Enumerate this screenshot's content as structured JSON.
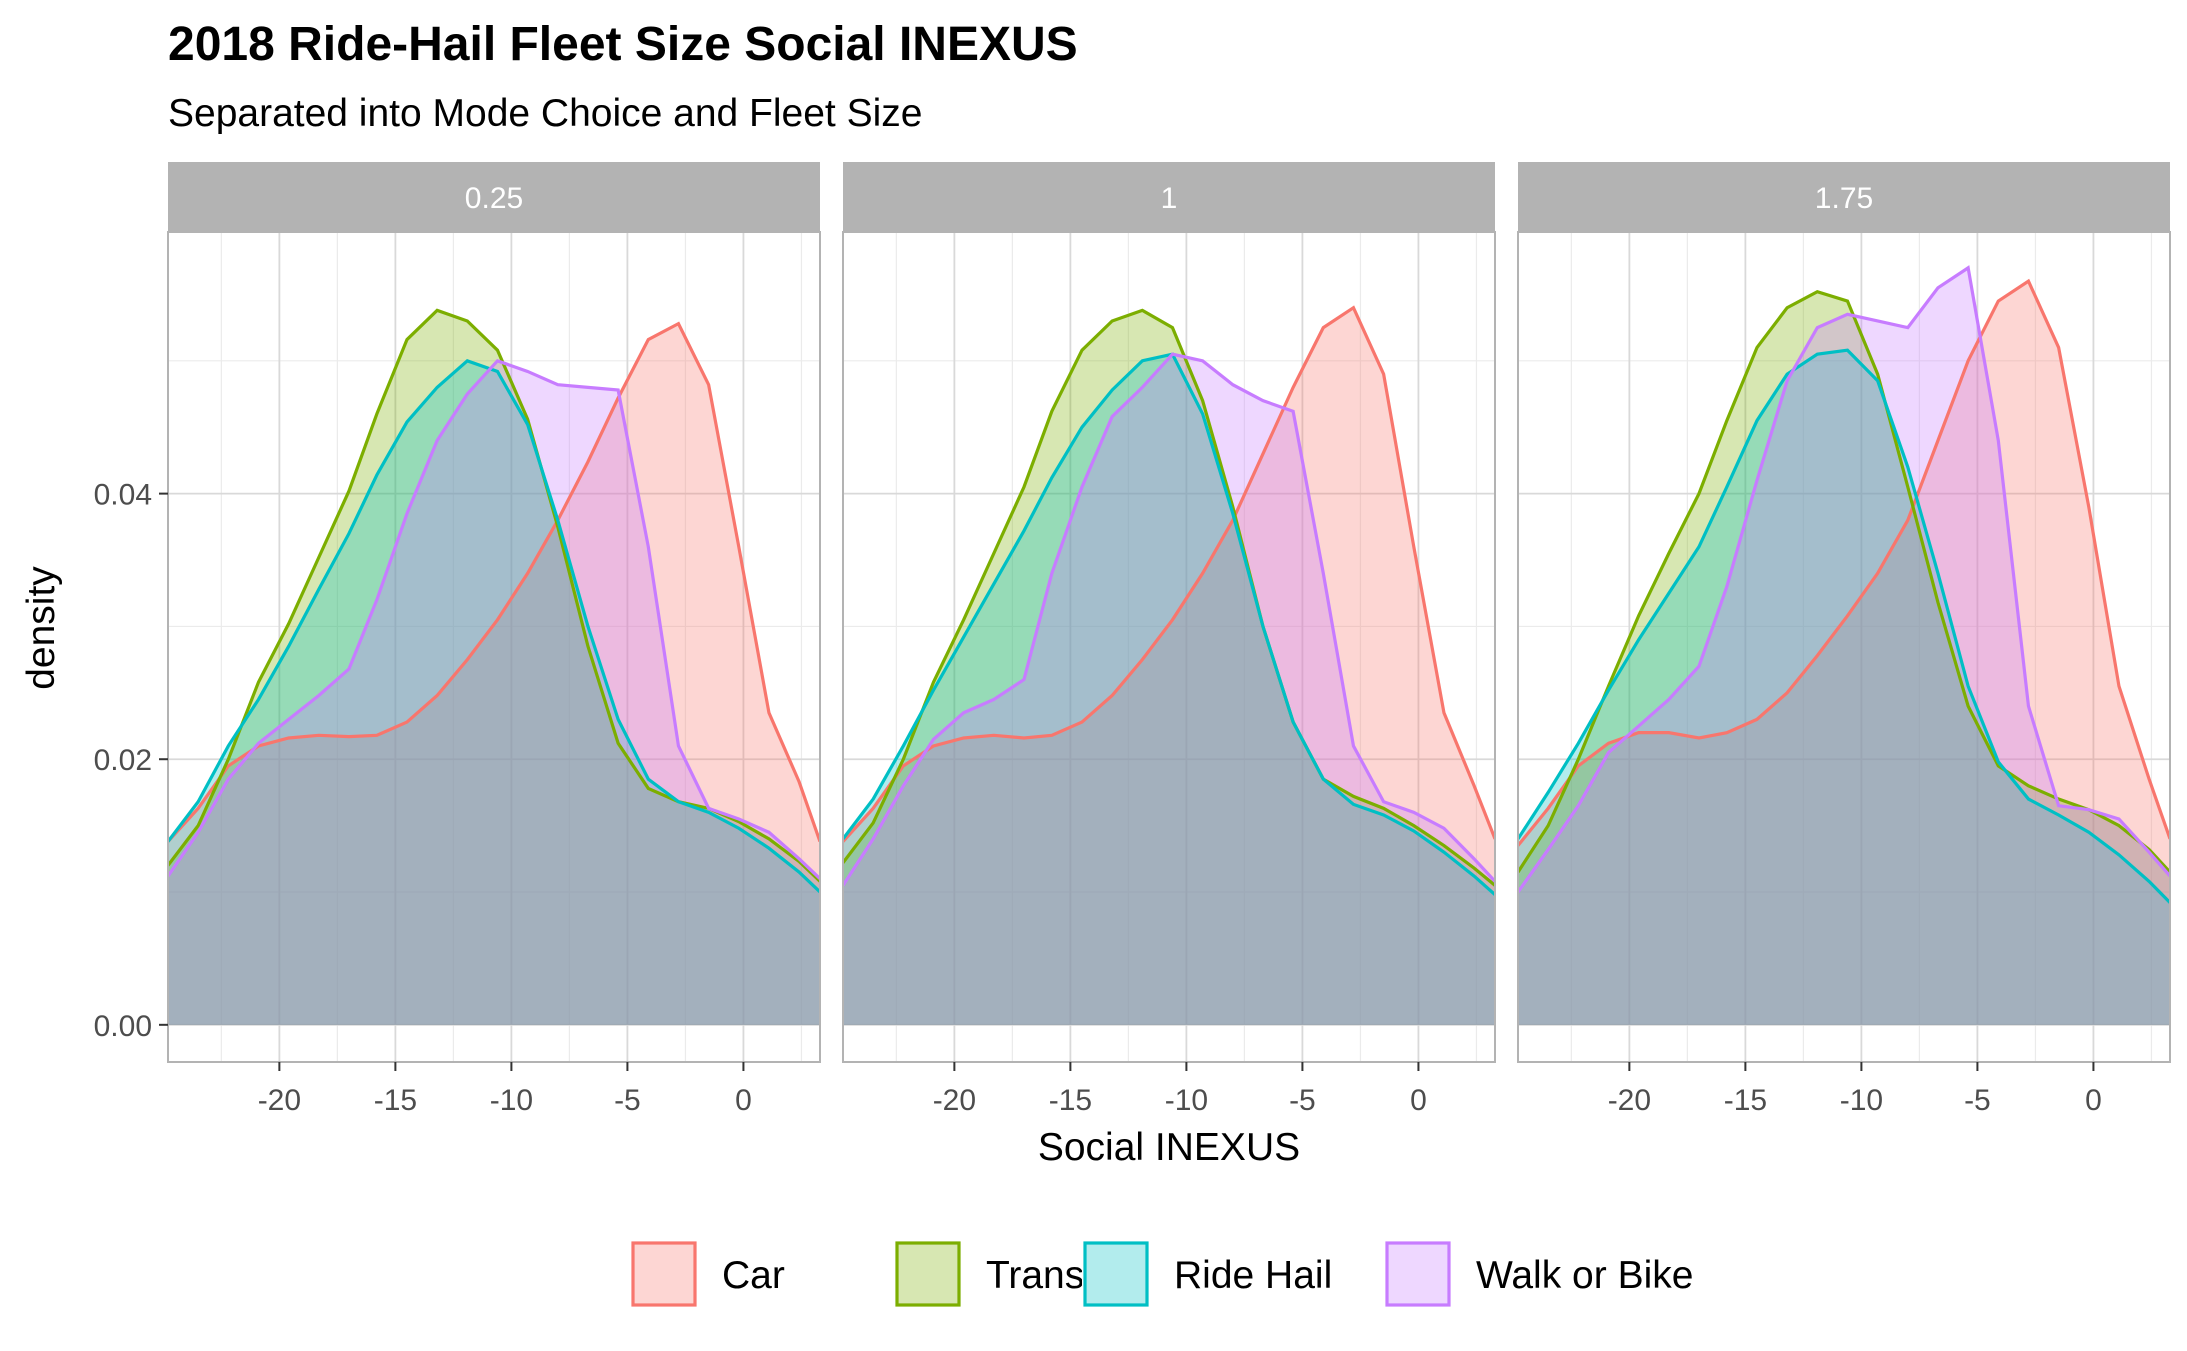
{
  "chart_data": {
    "type": "area",
    "title": "2018 Ride-Hail Fleet Size Social INEXUS",
    "subtitle": "Separated into Mode Choice and Fleet Size",
    "xlabel": "Social INEXUS",
    "ylabel": "density",
    "xlim": [
      -24.8,
      3.3
    ],
    "ylim": [
      -0.0028,
      0.0597
    ],
    "x_ticks": [
      -20,
      -15,
      -10,
      -5,
      0
    ],
    "x_tick_labels": [
      "-20",
      "-15",
      "-10",
      "-5",
      "0"
    ],
    "y_ticks": [
      0.0,
      0.02,
      0.04
    ],
    "y_tick_labels": [
      "0.00",
      "0.02",
      "0.04"
    ],
    "grid": true,
    "legend_position": "bottom",
    "legend": [
      {
        "name": "Car",
        "color": "#F8766D"
      },
      {
        "name": "Transit",
        "color": "#7CAE00"
      },
      {
        "name": "Ride Hail",
        "color": "#00BFC4"
      },
      {
        "name": "Walk or Bike",
        "color": "#C77CFF"
      }
    ],
    "panels": [
      {
        "label": "0.25",
        "series": [
          {
            "name": "Car",
            "color": "#F8766D",
            "x": [
              -24.8,
              -23.5,
              -22.2,
              -20.9,
              -19.6,
              -18.3,
              -17.0,
              -15.8,
              -14.5,
              -13.2,
              -11.9,
              -10.6,
              -9.3,
              -8.0,
              -6.7,
              -5.4,
              -4.1,
              -2.8,
              -1.5,
              -0.2,
              1.1,
              2.4,
              3.3
            ],
            "y": [
              0.0138,
              0.0163,
              0.0195,
              0.021,
              0.0216,
              0.0218,
              0.0217,
              0.0218,
              0.0228,
              0.0248,
              0.0275,
              0.0305,
              0.034,
              0.038,
              0.0424,
              0.0472,
              0.0516,
              0.0528,
              0.0482,
              0.036,
              0.0235,
              0.0183,
              0.0138
            ]
          },
          {
            "name": "Transit",
            "color": "#7CAE00",
            "x": [
              -24.8,
              -23.5,
              -22.2,
              -20.9,
              -19.6,
              -18.3,
              -17.0,
              -15.8,
              -14.5,
              -13.2,
              -11.9,
              -10.6,
              -9.3,
              -8.0,
              -6.7,
              -5.4,
              -4.1,
              -2.8,
              -1.5,
              -0.2,
              1.1,
              2.4,
              3.3
            ],
            "y": [
              0.012,
              0.015,
              0.02,
              0.0258,
              0.0302,
              0.0352,
              0.0402,
              0.046,
              0.0516,
              0.0538,
              0.053,
              0.0508,
              0.0456,
              0.0375,
              0.0285,
              0.0212,
              0.0178,
              0.0168,
              0.0163,
              0.0153,
              0.014,
              0.0123,
              0.0108
            ]
          },
          {
            "name": "Ride Hail",
            "color": "#00BFC4",
            "x": [
              -24.8,
              -23.5,
              -22.2,
              -20.9,
              -19.6,
              -18.3,
              -17.0,
              -15.8,
              -14.5,
              -13.2,
              -11.9,
              -10.6,
              -9.3,
              -8.0,
              -6.7,
              -5.4,
              -4.1,
              -2.8,
              -1.5,
              -0.2,
              1.1,
              2.4,
              3.3
            ],
            "y": [
              0.0138,
              0.0168,
              0.021,
              0.0245,
              0.0285,
              0.0328,
              0.037,
              0.0414,
              0.0454,
              0.048,
              0.05,
              0.0492,
              0.0452,
              0.038,
              0.03,
              0.023,
              0.0185,
              0.0168,
              0.016,
              0.0148,
              0.0133,
              0.0115,
              0.01
            ]
          },
          {
            "name": "Walk or Bike",
            "color": "#C77CFF",
            "x": [
              -24.8,
              -23.5,
              -22.2,
              -20.9,
              -19.6,
              -18.3,
              -17.0,
              -15.8,
              -14.5,
              -13.2,
              -11.9,
              -10.6,
              -9.3,
              -8.0,
              -6.7,
              -5.4,
              -4.1,
              -2.8,
              -1.5,
              -0.2,
              1.1,
              2.4,
              3.3
            ],
            "y": [
              0.0112,
              0.0145,
              0.0185,
              0.0212,
              0.023,
              0.0248,
              0.0268,
              0.032,
              0.0385,
              0.044,
              0.0475,
              0.05,
              0.0492,
              0.0482,
              0.048,
              0.0478,
              0.036,
              0.021,
              0.0163,
              0.0155,
              0.0145,
              0.0125,
              0.011
            ]
          }
        ]
      },
      {
        "label": "1",
        "series": [
          {
            "name": "Car",
            "color": "#F8766D",
            "x": [
              -24.8,
              -23.5,
              -22.2,
              -20.9,
              -19.6,
              -18.3,
              -17.0,
              -15.8,
              -14.5,
              -13.2,
              -11.9,
              -10.6,
              -9.3,
              -8.0,
              -6.7,
              -5.4,
              -4.1,
              -2.8,
              -1.5,
              -0.2,
              1.1,
              2.4,
              3.3
            ],
            "y": [
              0.0138,
              0.0163,
              0.0195,
              0.021,
              0.0216,
              0.0218,
              0.0216,
              0.0218,
              0.0228,
              0.0248,
              0.0275,
              0.0305,
              0.034,
              0.038,
              0.043,
              0.048,
              0.0525,
              0.054,
              0.049,
              0.036,
              0.0235,
              0.018,
              0.014
            ]
          },
          {
            "name": "Transit",
            "color": "#7CAE00",
            "x": [
              -24.8,
              -23.5,
              -22.2,
              -20.9,
              -19.6,
              -18.3,
              -17.0,
              -15.8,
              -14.5,
              -13.2,
              -11.9,
              -10.6,
              -9.3,
              -8.0,
              -6.7,
              -5.4,
              -4.1,
              -2.8,
              -1.5,
              -0.2,
              1.1,
              2.4,
              3.3
            ],
            "y": [
              0.0122,
              0.0152,
              0.02,
              0.0258,
              0.0305,
              0.0355,
              0.0405,
              0.0462,
              0.0508,
              0.053,
              0.0538,
              0.0525,
              0.047,
              0.039,
              0.03,
              0.0228,
              0.0185,
              0.0172,
              0.0163,
              0.015,
              0.0135,
              0.0118,
              0.0105
            ]
          },
          {
            "name": "Ride Hail",
            "color": "#00BFC4",
            "x": [
              -24.8,
              -23.5,
              -22.2,
              -20.9,
              -19.6,
              -18.3,
              -17.0,
              -15.8,
              -14.5,
              -13.2,
              -11.9,
              -10.6,
              -9.3,
              -8.0,
              -6.7,
              -5.4,
              -4.1,
              -2.8,
              -1.5,
              -0.2,
              1.1,
              2.4,
              3.3
            ],
            "y": [
              0.014,
              0.017,
              0.021,
              0.0252,
              0.0292,
              0.0332,
              0.0372,
              0.0412,
              0.045,
              0.0478,
              0.05,
              0.0505,
              0.046,
              0.0385,
              0.03,
              0.0228,
              0.0185,
              0.0166,
              0.0158,
              0.0146,
              0.013,
              0.0112,
              0.0098
            ]
          },
          {
            "name": "Walk or Bike",
            "color": "#C77CFF",
            "x": [
              -24.8,
              -23.5,
              -22.2,
              -20.9,
              -19.6,
              -18.3,
              -17.0,
              -15.8,
              -14.5,
              -13.2,
              -11.9,
              -10.6,
              -9.3,
              -8.0,
              -6.7,
              -5.4,
              -4.1,
              -2.8,
              -1.5,
              -0.2,
              1.1,
              2.4,
              3.3
            ],
            "y": [
              0.0105,
              0.014,
              0.018,
              0.0215,
              0.0235,
              0.0245,
              0.026,
              0.034,
              0.0405,
              0.0458,
              0.048,
              0.0505,
              0.05,
              0.0482,
              0.047,
              0.0462,
              0.034,
              0.021,
              0.0168,
              0.016,
              0.0148,
              0.0125,
              0.0108
            ]
          }
        ]
      },
      {
        "label": "1.75",
        "series": [
          {
            "name": "Car",
            "color": "#F8766D",
            "x": [
              -24.8,
              -23.5,
              -22.2,
              -20.9,
              -19.6,
              -18.3,
              -17.0,
              -15.8,
              -14.5,
              -13.2,
              -11.9,
              -10.6,
              -9.3,
              -8.0,
              -6.7,
              -5.4,
              -4.1,
              -2.8,
              -1.5,
              -0.2,
              1.1,
              2.4,
              3.3
            ],
            "y": [
              0.0135,
              0.0163,
              0.0195,
              0.0212,
              0.022,
              0.022,
              0.0216,
              0.022,
              0.023,
              0.025,
              0.0278,
              0.0308,
              0.034,
              0.038,
              0.044,
              0.05,
              0.0545,
              0.056,
              0.051,
              0.039,
              0.0255,
              0.0185,
              0.014
            ]
          },
          {
            "name": "Transit",
            "color": "#7CAE00",
            "x": [
              -24.8,
              -23.5,
              -22.2,
              -20.9,
              -19.6,
              -18.3,
              -17.0,
              -15.8,
              -14.5,
              -13.2,
              -11.9,
              -10.6,
              -9.3,
              -8.0,
              -6.7,
              -5.4,
              -4.1,
              -2.8,
              -1.5,
              -0.2,
              1.1,
              2.4,
              3.3
            ],
            "y": [
              0.0115,
              0.015,
              0.02,
              0.0255,
              0.0308,
              0.0355,
              0.04,
              0.0455,
              0.051,
              0.054,
              0.0552,
              0.0545,
              0.049,
              0.0405,
              0.0318,
              0.024,
              0.0195,
              0.018,
              0.017,
              0.0162,
              0.015,
              0.0132,
              0.0115
            ]
          },
          {
            "name": "Ride Hail",
            "color": "#00BFC4",
            "x": [
              -24.8,
              -23.5,
              -22.2,
              -20.9,
              -19.6,
              -18.3,
              -17.0,
              -15.8,
              -14.5,
              -13.2,
              -11.9,
              -10.6,
              -9.3,
              -8.0,
              -6.7,
              -5.4,
              -4.1,
              -2.8,
              -1.5,
              -0.2,
              1.1,
              2.4,
              3.3
            ],
            "y": [
              0.014,
              0.0175,
              0.0212,
              0.0252,
              0.029,
              0.0325,
              0.036,
              0.0405,
              0.0455,
              0.049,
              0.0505,
              0.0508,
              0.0485,
              0.042,
              0.034,
              0.0255,
              0.0198,
              0.017,
              0.0158,
              0.0145,
              0.0128,
              0.0108,
              0.0092
            ]
          },
          {
            "name": "Walk or Bike",
            "color": "#C77CFF",
            "x": [
              -24.8,
              -23.5,
              -22.2,
              -20.9,
              -19.6,
              -18.3,
              -17.0,
              -15.8,
              -14.5,
              -13.2,
              -11.9,
              -10.6,
              -9.3,
              -8.0,
              -6.7,
              -5.4,
              -4.1,
              -2.8,
              -1.5,
              -0.2,
              1.1,
              2.4,
              3.3
            ],
            "y": [
              0.01,
              0.0132,
              0.0165,
              0.0205,
              0.0225,
              0.0245,
              0.027,
              0.033,
              0.041,
              0.0485,
              0.0525,
              0.0535,
              0.053,
              0.0525,
              0.0555,
              0.057,
              0.044,
              0.024,
              0.0165,
              0.0162,
              0.0155,
              0.013,
              0.0112
            ]
          }
        ]
      }
    ]
  }
}
